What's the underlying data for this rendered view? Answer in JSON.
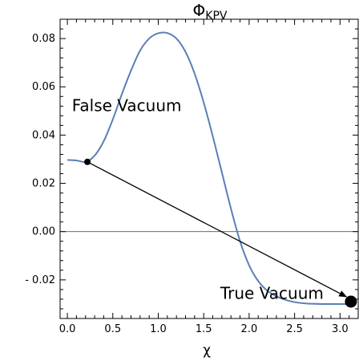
{
  "chart_data": {
    "type": "line",
    "title_main": "Φ",
    "title_sub": "KPV",
    "xlabel": "χ",
    "ylabel": "",
    "xlim": [
      -0.08,
      3.2
    ],
    "ylim": [
      -0.036,
      0.088
    ],
    "xticks": [
      0.0,
      0.5,
      1.0,
      1.5,
      2.0,
      2.5,
      3.0
    ],
    "xtick_labels": [
      "0.0",
      "0.5",
      "1.0",
      "1.5",
      "2.0",
      "2.5",
      "3.0"
    ],
    "yticks": [
      -0.02,
      0.0,
      0.02,
      0.04,
      0.06,
      0.08
    ],
    "ytick_labels": [
      "- 0.02",
      "0.00",
      "0.02",
      "0.04",
      "0.06",
      "0.08"
    ],
    "zero_line": true,
    "series": [
      {
        "color": "#5b7fb5",
        "x": [
          0.0,
          0.1,
          0.2,
          0.3,
          0.4,
          0.5,
          0.6,
          0.7,
          0.8,
          0.9,
          1.0,
          1.1,
          1.2,
          1.3,
          1.4,
          1.5,
          1.6,
          1.7,
          1.8,
          1.9,
          2.0,
          2.1,
          2.2,
          2.3,
          2.4,
          2.5,
          2.6,
          2.7,
          2.8,
          2.9,
          3.0,
          3.1
        ],
        "y": [
          0.0297,
          0.0295,
          0.0289,
          0.0315,
          0.0375,
          0.0465,
          0.057,
          0.0667,
          0.075,
          0.08,
          0.0822,
          0.0823,
          0.08,
          0.0745,
          0.0655,
          0.0535,
          0.0395,
          0.0245,
          0.0095,
          -0.004,
          -0.014,
          -0.0205,
          -0.0245,
          -0.0268,
          -0.0283,
          -0.0292,
          -0.0297,
          -0.0299,
          -0.03,
          -0.03,
          -0.03,
          -0.03
        ]
      }
    ],
    "markers": [
      {
        "name": "false-vacuum-point",
        "x": 0.22,
        "y": 0.0289,
        "size": "small"
      },
      {
        "name": "true-vacuum-point",
        "x": 3.12,
        "y": -0.029,
        "size": "large"
      }
    ],
    "arrow": {
      "from": [
        0.22,
        0.0289
      ],
      "to": [
        3.07,
        -0.027
      ]
    },
    "annotations": [
      {
        "name": "false-vacuum-label",
        "text": "False Vacuum",
        "x": 0.05,
        "y": 0.05
      },
      {
        "name": "true-vacuum-label",
        "text": "True Vacuum",
        "x": 2.82,
        "y": -0.0278
      }
    ]
  }
}
